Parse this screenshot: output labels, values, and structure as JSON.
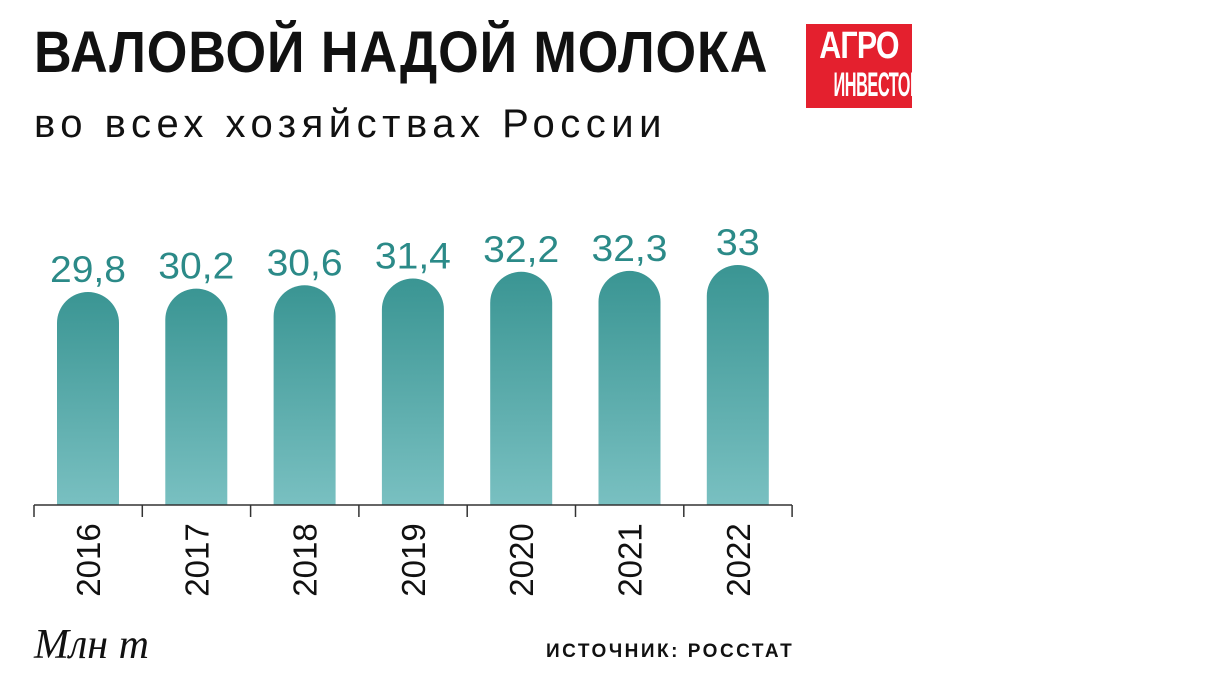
{
  "header": {
    "title": "ВАЛОВОЙ НАДОЙ МОЛОКА",
    "subtitle": "во всех хозяйствах России"
  },
  "logo": {
    "line1": "АГРО",
    "line2": "ИНВЕСТОР",
    "color": "#e4202e"
  },
  "footer": {
    "unit": "Млн т",
    "source": "ИСТОЧНИК: РОССТАТ"
  },
  "colors": {
    "bar_top": "#3a9593",
    "bar_bottom": "#79c0c1",
    "label": "#2b8a88",
    "axis": "#333333"
  },
  "chart_data": {
    "type": "bar",
    "categories": [
      "2016",
      "2017",
      "2018",
      "2019",
      "2020",
      "2021",
      "2022"
    ],
    "values": [
      29.8,
      30.2,
      30.6,
      31.4,
      32.2,
      32.3,
      33
    ],
    "value_labels": [
      "29,8",
      "30,2",
      "30,6",
      "31,4",
      "32,2",
      "32,3",
      "33"
    ],
    "grid": false,
    "legend": "none"
  }
}
